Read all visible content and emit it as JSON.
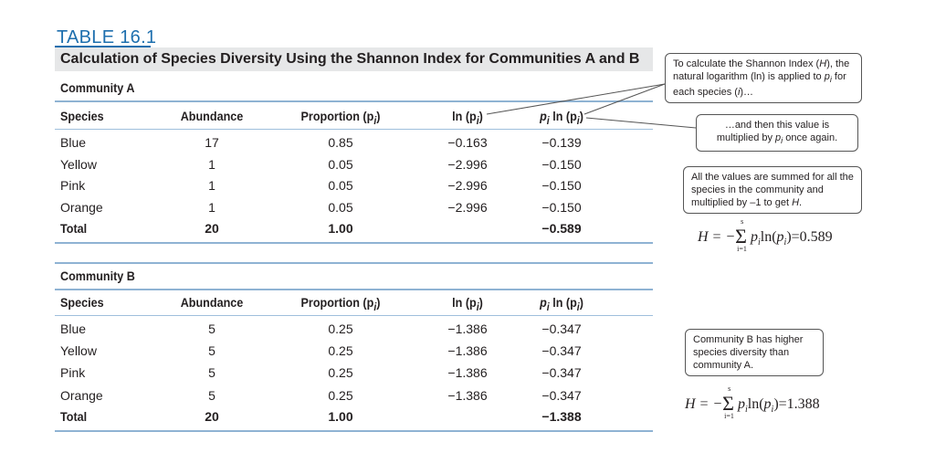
{
  "table_label": "TABLE  16.1",
  "title": "Calculation of Species Diversity Using the Shannon Index for Communities A and B",
  "headers": {
    "species": "Species",
    "abundance": "Abundance",
    "proportion": "Proportion (p",
    "proportion_sub": "i",
    "proportion_close": ")",
    "ln": "ln (p",
    "ln_sub": "i",
    "ln_close": ")",
    "pln_p": "p",
    "pln_sub": "i",
    "pln_mid": " ln (p",
    "pln_sub2": "i",
    "pln_close": ")"
  },
  "community_a": {
    "label": "Community A",
    "rows": [
      {
        "species": "Blue",
        "abundance": "17",
        "proportion": "0.85",
        "ln": "−0.163",
        "pln": "−0.139"
      },
      {
        "species": "Yellow",
        "abundance": "1",
        "proportion": "0.05",
        "ln": "−2.996",
        "pln": "−0.150"
      },
      {
        "species": "Pink",
        "abundance": "1",
        "proportion": "0.05",
        "ln": "−2.996",
        "pln": "−0.150"
      },
      {
        "species": "Orange",
        "abundance": "1",
        "proportion": "0.05",
        "ln": "−2.996",
        "pln": "−0.150"
      }
    ],
    "total": {
      "label": "Total",
      "abundance": "20",
      "proportion": "1.00",
      "pln": "−0.589"
    }
  },
  "community_b": {
    "label": "Community B",
    "rows": [
      {
        "species": "Blue",
        "abundance": "5",
        "proportion": "0.25",
        "ln": "−1.386",
        "pln": "−0.347"
      },
      {
        "species": "Yellow",
        "abundance": "5",
        "proportion": "0.25",
        "ln": "−1.386",
        "pln": "−0.347"
      },
      {
        "species": "Pink",
        "abundance": "5",
        "proportion": "0.25",
        "ln": "−1.386",
        "pln": "−0.347"
      },
      {
        "species": "Orange",
        "abundance": "5",
        "proportion": "0.25",
        "ln": "−1.386",
        "pln": "−0.347"
      }
    ],
    "total": {
      "label": "Total",
      "abundance": "20",
      "proportion": "1.00",
      "pln": "−1.388"
    }
  },
  "callouts": {
    "c1_a": "To calculate the Shannon Index (",
    "c1_H": "H",
    "c1_b": "), the natural logarithm (ln) is applied to ",
    "c1_p": "p",
    "c1_sub": "i",
    "c1_c": " for each species (",
    "c1_i": "i",
    "c1_d": ")…",
    "c2_a": "…and then this value is multiplied by ",
    "c2_p": "p",
    "c2_sub": "i",
    "c2_b": " once again.",
    "c3_a": "All the values are summed for all the species in the community and multiplied by –1 to get ",
    "c3_H": "H",
    "c3_b": ".",
    "c4": "Community B has higher species diversity than community A."
  },
  "formulas": {
    "a_value": "=0.589",
    "b_value": "=1.388",
    "lhs": "H = −",
    "upper": "s",
    "lower": "i=1"
  },
  "colors": {
    "accent": "#1e6fae",
    "title_bar": "#e6e7e8",
    "rule": "#8fb3d3"
  }
}
